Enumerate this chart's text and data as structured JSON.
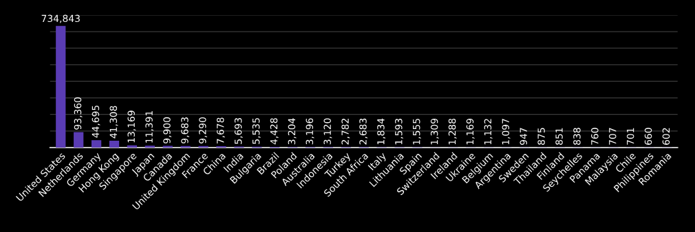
{
  "chart_data": {
    "type": "bar",
    "categories": [
      "United States",
      "Netherlands",
      "Germany",
      "Hong Kong",
      "Singapore",
      "Japan",
      "Canada",
      "United Kingdom",
      "France",
      "China",
      "India",
      "Bulgaria",
      "Brazil",
      "Poland",
      "Australia",
      "Indonesia",
      "Turkey",
      "South Africa",
      "Italy",
      "Lithuania",
      "Spain",
      "Switzerland",
      "Ireland",
      "Ukraine",
      "Belgium",
      "Argentina",
      "Sweden",
      "Thailand",
      "Finland",
      "Seychelles",
      "Panama",
      "Malaysia",
      "Chile",
      "Philippines",
      "Romania"
    ],
    "values": [
      734843,
      93360,
      44695,
      41308,
      13169,
      11391,
      9900,
      9683,
      9290,
      7678,
      5693,
      5535,
      4428,
      3204,
      3196,
      3120,
      2782,
      2683,
      1834,
      1593,
      1555,
      1309,
      1288,
      1169,
      1132,
      1097,
      947,
      875,
      851,
      838,
      760,
      707,
      701,
      660,
      602
    ],
    "value_labels": [
      "734,843",
      "93,360",
      "44,695",
      "41,308",
      "13,169",
      "11,391",
      "9,900",
      "9,683",
      "9,290",
      "7,678",
      "5,693",
      "5,535",
      "4,428",
      "3,204",
      "3,196",
      "3,120",
      "2,782",
      "2,683",
      "1,834",
      "1,593",
      "1,555",
      "1,309",
      "1,288",
      "1,169",
      "1,132",
      "1,097",
      "947",
      "875",
      "851",
      "838",
      "760",
      "707",
      "701",
      "660",
      "602"
    ],
    "color": "#5a3cb4",
    "ylim": [
      0,
      800000
    ],
    "yticks": [
      {
        "value": 0,
        "label": null
      },
      {
        "value": 100000,
        "label": null
      },
      {
        "value": 200000,
        "label": null
      },
      {
        "value": 300000,
        "label": null
      },
      {
        "value": 400000,
        "label": null
      },
      {
        "value": 500000,
        "label": null
      },
      {
        "value": 600000,
        "label": null
      },
      {
        "value": 700000,
        "label": null
      },
      {
        "value": 800000,
        "label": null
      }
    ],
    "tick_labels": "x",
    "grid": "y"
  }
}
